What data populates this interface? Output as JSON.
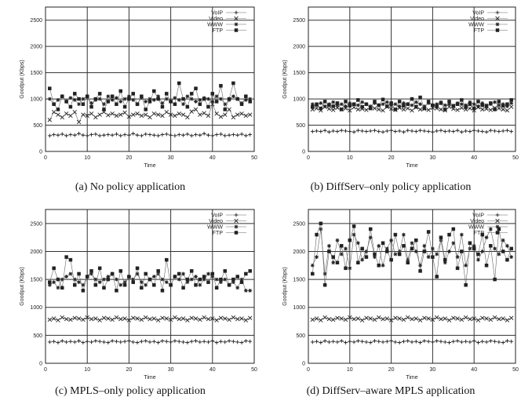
{
  "chart_data": [
    {
      "type": "line",
      "caption": "(a) No policy application",
      "xlabel": "Time",
      "ylabel": "Goodput (Kbps)",
      "xlim": [
        0,
        50
      ],
      "ylim": [
        0,
        2750
      ],
      "xticks": [
        0,
        10,
        20,
        30,
        40,
        50
      ],
      "yticks": [
        0,
        500,
        1000,
        1500,
        2000,
        2500
      ],
      "grid": true,
      "legend_position": "top-right",
      "x": [
        1,
        2,
        3,
        4,
        5,
        6,
        7,
        8,
        9,
        10,
        11,
        12,
        13,
        14,
        15,
        16,
        17,
        18,
        19,
        20,
        21,
        22,
        23,
        24,
        25,
        26,
        27,
        28,
        29,
        30,
        31,
        32,
        33,
        34,
        35,
        36,
        37,
        38,
        39,
        40,
        41,
        42,
        43,
        44,
        45,
        46,
        47,
        48,
        49
      ],
      "series": [
        {
          "name": "VoIP",
          "marker": "plus",
          "values": [
            300,
            320,
            310,
            330,
            300,
            320,
            310,
            340,
            310,
            300,
            320,
            330,
            300,
            310,
            320,
            310,
            330,
            300,
            320,
            310,
            340,
            310,
            300,
            330,
            320,
            310,
            300,
            320,
            330,
            310,
            300,
            320,
            310,
            330,
            300,
            320,
            310,
            340,
            310,
            300,
            320,
            330,
            300,
            310,
            320,
            310,
            330,
            300,
            320
          ]
        },
        {
          "name": "Video",
          "marker": "x",
          "values": [
            600,
            750,
            700,
            650,
            720,
            680,
            750,
            560,
            700,
            680,
            720,
            650,
            700,
            750,
            690,
            720,
            680,
            700,
            740,
            660,
            700,
            720,
            680,
            700,
            650,
            720,
            700,
            680,
            750,
            700,
            680,
            720,
            700,
            650,
            760,
            800,
            700,
            730,
            680,
            900,
            720,
            660,
            700,
            800,
            650,
            700,
            720,
            680,
            700
          ]
        },
        {
          "name": "WWW",
          "marker": "star",
          "values": [
            1000,
            900,
            980,
            1050,
            950,
            1020,
            980,
            900,
            1000,
            1050,
            920,
            980,
            1000,
            900,
            1050,
            980,
            1020,
            950,
            1000,
            1050,
            980,
            900,
            1020,
            950,
            1000,
            980,
            1050,
            920,
            1000,
            950,
            1020,
            980,
            900,
            1050,
            1000,
            950,
            980,
            1020,
            1000,
            950,
            1050,
            1000,
            900,
            980,
            1050,
            1000,
            920,
            980,
            1000
          ]
        },
        {
          "name": "FTP",
          "marker": "square",
          "values": [
            1200,
            900,
            800,
            1050,
            950,
            850,
            1100,
            1000,
            900,
            1050,
            850,
            1000,
            1100,
            800,
            950,
            1050,
            900,
            1150,
            850,
            1000,
            1100,
            900,
            1050,
            800,
            950,
            1150,
            1000,
            850,
            1100,
            950,
            900,
            1300,
            1000,
            850,
            1100,
            1200,
            900,
            1000,
            850,
            1100,
            950,
            1250,
            800,
            1000,
            1300,
            1000,
            900,
            1050,
            950
          ]
        }
      ]
    },
    {
      "type": "line",
      "caption": "(b) DiffServ–only policy application",
      "xlabel": "Time",
      "ylabel": "Goodput (Kbps)",
      "xlim": [
        0,
        50
      ],
      "ylim": [
        0,
        2750
      ],
      "xticks": [
        0,
        10,
        20,
        30,
        40,
        50
      ],
      "yticks": [
        0,
        500,
        1000,
        1500,
        2000,
        2500
      ],
      "grid": true,
      "legend_position": "top-right",
      "x": [
        1,
        2,
        3,
        4,
        5,
        6,
        7,
        8,
        9,
        10,
        11,
        12,
        13,
        14,
        15,
        16,
        17,
        18,
        19,
        20,
        21,
        22,
        23,
        24,
        25,
        26,
        27,
        28,
        29,
        30,
        31,
        32,
        33,
        34,
        35,
        36,
        37,
        38,
        39,
        40,
        41,
        42,
        43,
        44,
        45,
        46,
        47,
        48,
        49
      ],
      "series": [
        {
          "name": "VoIP",
          "marker": "plus",
          "values": [
            380,
            390,
            380,
            400,
            370,
            390,
            380,
            400,
            390,
            380,
            370,
            400,
            390,
            380,
            390,
            400,
            380,
            370,
            390,
            400,
            380,
            390,
            370,
            400,
            390,
            380,
            400,
            390,
            380,
            370,
            390,
            400,
            380,
            390,
            380,
            400,
            370,
            390,
            380,
            400,
            390,
            380,
            370,
            400,
            390,
            380,
            390,
            400,
            380
          ]
        },
        {
          "name": "Video",
          "marker": "x",
          "values": [
            800,
            820,
            780,
            850,
            810,
            790,
            830,
            800,
            820,
            780,
            840,
            800,
            810,
            790,
            830,
            820,
            800,
            780,
            850,
            810,
            790,
            830,
            800,
            820,
            780,
            840,
            800,
            810,
            790,
            830,
            820,
            800,
            780,
            850,
            810,
            790,
            830,
            800,
            820,
            780,
            840,
            800,
            810,
            790,
            830,
            820,
            800,
            780,
            850
          ]
        },
        {
          "name": "WWW",
          "marker": "star",
          "values": [
            900,
            880,
            920,
            860,
            900,
            940,
            880,
            900,
            860,
            920,
            900,
            880,
            940,
            900,
            860,
            920,
            880,
            900,
            940,
            880,
            900,
            860,
            920,
            900,
            880,
            940,
            900,
            860,
            920,
            880,
            900,
            940,
            880,
            900,
            860,
            920,
            900,
            880,
            940,
            900,
            860,
            920,
            880,
            900,
            940,
            880,
            900,
            860,
            920
          ]
        },
        {
          "name": "FTP",
          "marker": "square",
          "values": [
            850,
            900,
            820,
            950,
            880,
            860,
            920,
            800,
            950,
            870,
            900,
            980,
            850,
            900,
            820,
            950,
            880,
            990,
            860,
            920,
            800,
            950,
            870,
            900,
            1000,
            850,
            1030,
            820,
            950,
            880,
            860,
            920,
            800,
            950,
            870,
            900,
            980,
            850,
            900,
            820,
            950,
            880,
            860,
            920,
            800,
            950,
            870,
            900,
            980
          ]
        }
      ]
    },
    {
      "type": "line",
      "caption": "(c) MPLS–only policy application",
      "xlabel": "Time",
      "ylabel": "Goodput (Kbps)",
      "xlim": [
        0,
        50
      ],
      "ylim": [
        0,
        2750
      ],
      "xticks": [
        0,
        10,
        20,
        30,
        40,
        50
      ],
      "yticks": [
        0,
        500,
        1000,
        1500,
        2000,
        2500
      ],
      "grid": true,
      "legend_position": "top-right",
      "x": [
        1,
        2,
        3,
        4,
        5,
        6,
        7,
        8,
        9,
        10,
        11,
        12,
        13,
        14,
        15,
        16,
        17,
        18,
        19,
        20,
        21,
        22,
        23,
        24,
        25,
        26,
        27,
        28,
        29,
        30,
        31,
        32,
        33,
        34,
        35,
        36,
        37,
        38,
        39,
        40,
        41,
        42,
        43,
        44,
        45,
        46,
        47,
        48,
        49
      ],
      "series": [
        {
          "name": "VoIP",
          "marker": "plus",
          "values": [
            380,
            390,
            370,
            400,
            380,
            390,
            380,
            400,
            370,
            390,
            380,
            400,
            390,
            380,
            370,
            400,
            390,
            380,
            390,
            400,
            380,
            370,
            390,
            400,
            380,
            390,
            370,
            400,
            390,
            380,
            400,
            390,
            380,
            370,
            390,
            400,
            380,
            390,
            380,
            400,
            370,
            390,
            380,
            400,
            390,
            380,
            370,
            400,
            390
          ]
        },
        {
          "name": "Video",
          "marker": "x",
          "values": [
            780,
            800,
            770,
            820,
            790,
            780,
            810,
            800,
            780,
            820,
            790,
            800,
            770,
            810,
            800,
            780,
            820,
            790,
            800,
            770,
            810,
            800,
            780,
            820,
            790,
            800,
            770,
            810,
            800,
            780,
            820,
            790,
            800,
            770,
            810,
            800,
            780,
            820,
            790,
            800,
            770,
            810,
            800,
            780,
            820,
            790,
            800,
            770,
            810
          ]
        },
        {
          "name": "WWW",
          "marker": "star",
          "values": [
            1400,
            1450,
            1350,
            1500,
            1550,
            1600,
            1500,
            1450,
            1400,
            1550,
            1600,
            1500,
            1450,
            1500,
            1550,
            1600,
            1500,
            1400,
            1450,
            1550,
            1500,
            1600,
            1450,
            1400,
            1500,
            1550,
            1600,
            1500,
            1450,
            1400,
            1550,
            1500,
            1600,
            1450,
            1500,
            1550,
            1400,
            1500,
            1600,
            1550,
            1500,
            1450,
            1500,
            1400,
            1450,
            1350,
            1500,
            1300,
            1300
          ]
        },
        {
          "name": "FTP",
          "marker": "square",
          "values": [
            1450,
            1700,
            1500,
            1350,
            1900,
            1850,
            1400,
            1600,
            1300,
            1550,
            1650,
            1400,
            1700,
            1350,
            1500,
            1600,
            1300,
            1650,
            1400,
            1550,
            1450,
            1700,
            1350,
            1600,
            1500,
            1400,
            1650,
            1300,
            1850,
            1400,
            1550,
            1600,
            1350,
            1500,
            1650,
            1400,
            1500,
            1550,
            1450,
            1600,
            1350,
            1500,
            1650,
            1400,
            1500,
            1550,
            1450,
            1600,
            1650
          ]
        }
      ]
    },
    {
      "type": "line",
      "caption": "(d) DiffServ–aware MPLS application",
      "xlabel": "Time",
      "ylabel": "Goodput (Kbps)",
      "xlim": [
        0,
        50
      ],
      "ylim": [
        0,
        2750
      ],
      "xticks": [
        0,
        10,
        20,
        30,
        40,
        50
      ],
      "yticks": [
        0,
        500,
        1000,
        1500,
        2000,
        2500
      ],
      "grid": true,
      "legend_position": "top-right",
      "x": [
        1,
        2,
        3,
        4,
        5,
        6,
        7,
        8,
        9,
        10,
        11,
        12,
        13,
        14,
        15,
        16,
        17,
        18,
        19,
        20,
        21,
        22,
        23,
        24,
        25,
        26,
        27,
        28,
        29,
        30,
        31,
        32,
        33,
        34,
        35,
        36,
        37,
        38,
        39,
        40,
        41,
        42,
        43,
        44,
        45,
        46,
        47,
        48,
        49
      ],
      "series": [
        {
          "name": "VoIP",
          "marker": "plus",
          "values": [
            380,
            390,
            370,
            400,
            380,
            390,
            380,
            400,
            370,
            390,
            380,
            400,
            390,
            380,
            370,
            400,
            390,
            380,
            390,
            400,
            380,
            370,
            390,
            400,
            380,
            390,
            370,
            400,
            390,
            380,
            400,
            390,
            380,
            370,
            390,
            400,
            380,
            390,
            380,
            400,
            370,
            390,
            380,
            400,
            390,
            380,
            370,
            400,
            390
          ]
        },
        {
          "name": "Video",
          "marker": "x",
          "values": [
            780,
            800,
            770,
            820,
            790,
            780,
            810,
            800,
            780,
            820,
            790,
            800,
            770,
            810,
            800,
            780,
            820,
            790,
            800,
            770,
            810,
            800,
            780,
            820,
            790,
            800,
            770,
            810,
            800,
            780,
            820,
            790,
            800,
            770,
            810,
            800,
            780,
            820,
            790,
            800,
            770,
            810,
            800,
            780,
            820,
            790,
            800,
            770,
            810
          ]
        },
        {
          "name": "WWW",
          "marker": "star",
          "values": [
            1750,
            1900,
            2400,
            1600,
            2100,
            1800,
            2200,
            1950,
            2050,
            1700,
            2300,
            2150,
            1850,
            2000,
            2250,
            1900,
            2100,
            1750,
            2050,
            2200,
            1950,
            2000,
            2300,
            1850,
            2150,
            2000,
            1750,
            2100,
            1900,
            2050,
            1950,
            2200,
            1800,
            2000,
            2150,
            1900,
            2300,
            1750,
            2050,
            2100,
            1850,
            2000,
            2250,
            2400,
            2050,
            1950,
            2200,
            2100,
            1900
          ]
        },
        {
          "name": "FTP",
          "marker": "square",
          "values": [
            1600,
            2300,
            2500,
            1400,
            2000,
            1900,
            1800,
            2100,
            1700,
            2200,
            2450,
            1800,
            2050,
            1900,
            2400,
            1950,
            1750,
            2150,
            2000,
            1850,
            2300,
            1950,
            2100,
            1800,
            2050,
            2200,
            1650,
            2000,
            2350,
            1900,
            1550,
            2250,
            1850,
            2300,
            2400,
            1700,
            2000,
            1400,
            2150,
            2050,
            1950,
            2300,
            1750,
            2100,
            1500,
            2400,
            2000,
            1850,
            2050
          ]
        }
      ]
    }
  ]
}
